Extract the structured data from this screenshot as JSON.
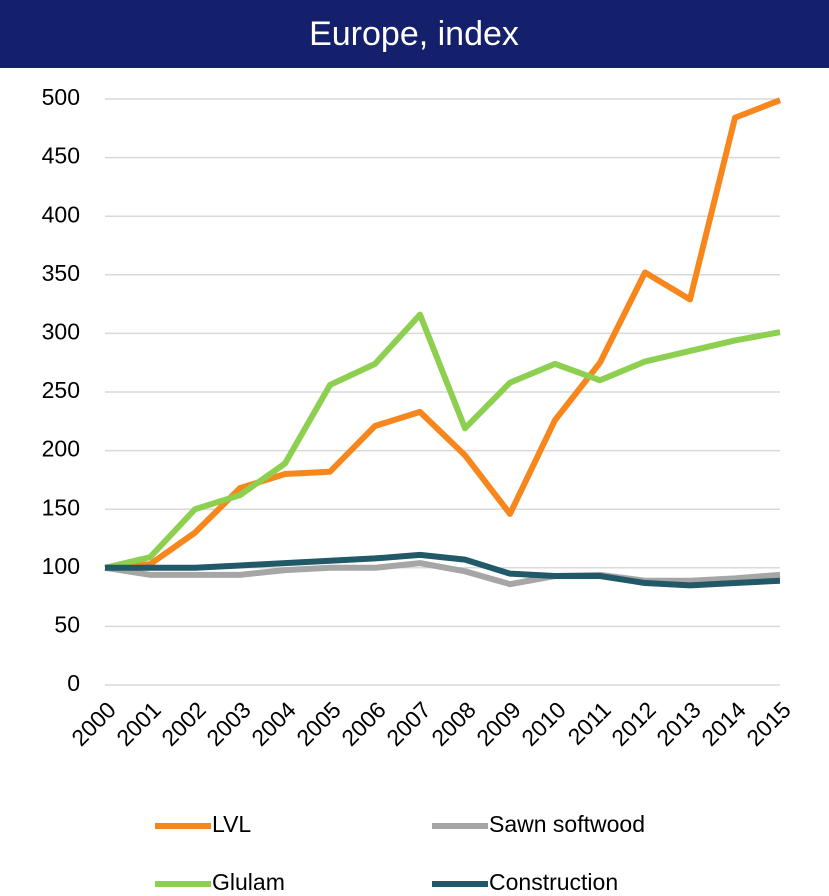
{
  "chart_data": {
    "type": "line",
    "title": "Europe, index",
    "categories": [
      "2000",
      "2001",
      "2002",
      "2003",
      "2004",
      "2005",
      "2006",
      "2007",
      "2008",
      "2009",
      "2010",
      "2011",
      "2012",
      "2013",
      "2014",
      "2015"
    ],
    "series": [
      {
        "name": "LVL",
        "color": "#f7861c",
        "values": [
          100,
          103,
          130,
          168,
          180,
          182,
          221,
          233,
          196,
          146,
          226,
          275,
          352,
          329,
          484,
          499
        ]
      },
      {
        "name": "Sawn softwood",
        "color": "#a6a6a6",
        "values": [
          100,
          94,
          94,
          94,
          98,
          100,
          100,
          104,
          97,
          86,
          93,
          94,
          89,
          89,
          91,
          94
        ]
      },
      {
        "name": "Glulam",
        "color": "#8dcf4f",
        "values": [
          100,
          109,
          150,
          162,
          189,
          256,
          274,
          316,
          219,
          258,
          274,
          260,
          276,
          285,
          294,
          301
        ]
      },
      {
        "name": "Construction",
        "color": "#215968",
        "values": [
          100,
          100,
          100,
          102,
          104,
          106,
          108,
          111,
          107,
          95,
          93,
          93,
          87,
          85,
          87,
          89
        ]
      }
    ],
    "ylim": [
      0,
      500
    ],
    "yticks": [
      0,
      50,
      100,
      150,
      200,
      250,
      300,
      350,
      400,
      450,
      500
    ],
    "grid": true
  }
}
